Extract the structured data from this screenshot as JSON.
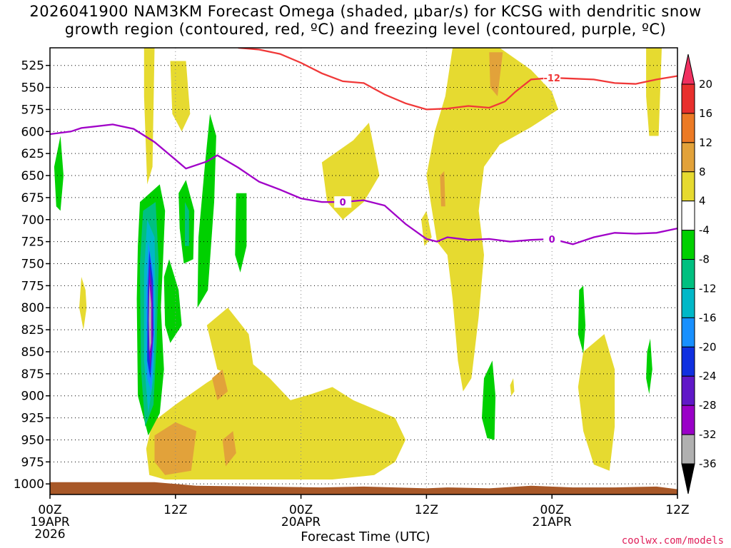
{
  "title_line1": "2026041900 NAM3KM Forecast Omega (shaded, μbar/s) for KCSG with dendritic snow",
  "title_line2": "growth region (contoured, red, ºC) and freezing level (contoured, purple, ºC)",
  "credit": "coolwx.com/models",
  "chart_data": {
    "type": "heatmap",
    "title": "2026041900 NAM3KM Forecast Omega (shaded, μbar/s) for KCSG with dendritic snow growth region (contoured, red, ºC) and freezing level (contoured, purple, ºC)",
    "xlabel": "Forecast Time (UTC)",
    "ylabel": "",
    "x_range_hours": [
      0,
      60
    ],
    "y_range_mb": [
      505,
      1012
    ],
    "y_ticks": [
      525,
      550,
      575,
      600,
      625,
      650,
      675,
      700,
      725,
      750,
      775,
      800,
      825,
      850,
      875,
      900,
      925,
      950,
      975,
      1000
    ],
    "x_ticks": [
      {
        "hour": 0,
        "label": "00Z",
        "sub1": "19APR",
        "sub2": "2026"
      },
      {
        "hour": 12,
        "label": "12Z",
        "sub1": "",
        "sub2": ""
      },
      {
        "hour": 24,
        "label": "00Z",
        "sub1": "20APR",
        "sub2": ""
      },
      {
        "hour": 36,
        "label": "12Z",
        "sub1": "",
        "sub2": ""
      },
      {
        "hour": 48,
        "label": "00Z",
        "sub1": "21APR",
        "sub2": ""
      },
      {
        "hour": 60,
        "label": "12Z",
        "sub1": "",
        "sub2": ""
      }
    ],
    "grid": true,
    "colorbar": {
      "levels": [
        20,
        16,
        12,
        8,
        4,
        -4,
        -8,
        -12,
        -16,
        -20,
        -24,
        -28,
        -32,
        -36
      ],
      "colors": [
        "#f03060",
        "#e8302d",
        "#ec7a25",
        "#e2a23a",
        "#e6da30",
        "#ffffff",
        "#00d000",
        "#00c080",
        "#00b8c8",
        "#1890ff",
        "#1030e0",
        "#6018c8",
        "#9a00c8",
        "#b0b0b0",
        "#000000"
      ]
    },
    "omega_regions": [
      {
        "value": 6,
        "points": [
          [
            9.0,
            505
          ],
          [
            10.0,
            505
          ],
          [
            9.8,
            640
          ],
          [
            9.3,
            660
          ],
          [
            9.0,
            560
          ]
        ]
      },
      {
        "value": 6,
        "points": [
          [
            11.5,
            520
          ],
          [
            13.0,
            520
          ],
          [
            13.4,
            580
          ],
          [
            12.6,
            600
          ],
          [
            11.7,
            580
          ]
        ]
      },
      {
        "value": 6,
        "points": [
          [
            3.0,
            765
          ],
          [
            3.4,
            780
          ],
          [
            3.5,
            800
          ],
          [
            3.2,
            825
          ],
          [
            2.8,
            800
          ]
        ]
      },
      {
        "value": 6,
        "points": [
          [
            9.8,
            930
          ],
          [
            12,
            910
          ],
          [
            15,
            885
          ],
          [
            17,
            870
          ],
          [
            19,
            860
          ],
          [
            21,
            880
          ],
          [
            23,
            905
          ],
          [
            25,
            898
          ],
          [
            27,
            890
          ],
          [
            29,
            905
          ],
          [
            31,
            915
          ],
          [
            33,
            925
          ],
          [
            34,
            950
          ],
          [
            33,
            975
          ],
          [
            31,
            990
          ],
          [
            27,
            995
          ],
          [
            23,
            995
          ],
          [
            19,
            995
          ],
          [
            15,
            995
          ],
          [
            11,
            995
          ],
          [
            9.5,
            990
          ],
          [
            9.2,
            960
          ]
        ]
      },
      {
        "value": 6,
        "points": [
          [
            15,
            820
          ],
          [
            17,
            800
          ],
          [
            19,
            830
          ],
          [
            19.5,
            870
          ],
          [
            18,
            880
          ],
          [
            16,
            870
          ]
        ]
      },
      {
        "value": 6,
        "points": [
          [
            26,
            635
          ],
          [
            29,
            610
          ],
          [
            30.5,
            590
          ],
          [
            31.5,
            650
          ],
          [
            30,
            680
          ],
          [
            28,
            700
          ],
          [
            26.5,
            680
          ]
        ]
      },
      {
        "value": 6,
        "points": [
          [
            35.5,
            700
          ],
          [
            36,
            690
          ],
          [
            36.5,
            720
          ],
          [
            35.8,
            730
          ]
        ]
      },
      {
        "value": 6,
        "points": [
          [
            38.5,
            505
          ],
          [
            43,
            505
          ],
          [
            46,
            530
          ],
          [
            48,
            555
          ],
          [
            48.6,
            575
          ],
          [
            46,
            595
          ],
          [
            43,
            615
          ],
          [
            41.5,
            640
          ],
          [
            41,
            690
          ],
          [
            41.5,
            740
          ],
          [
            41,
            810
          ],
          [
            40.3,
            880
          ],
          [
            39.5,
            895
          ],
          [
            39,
            860
          ],
          [
            38.5,
            790
          ],
          [
            38,
            740
          ],
          [
            37,
            725
          ],
          [
            36,
            650
          ],
          [
            36.8,
            600
          ],
          [
            37.8,
            560
          ]
        ]
      },
      {
        "value": 6,
        "points": [
          [
            51,
            850
          ],
          [
            53,
            830
          ],
          [
            54,
            870
          ],
          [
            54,
            935
          ],
          [
            53.5,
            985
          ],
          [
            52,
            978
          ],
          [
            51,
            940
          ],
          [
            50.5,
            890
          ]
        ]
      },
      {
        "value": 6,
        "points": [
          [
            57,
            505
          ],
          [
            58.5,
            505
          ],
          [
            58.2,
            605
          ],
          [
            57.3,
            605
          ],
          [
            57,
            560
          ]
        ]
      },
      {
        "value": 6,
        "points": [
          [
            44,
            888
          ],
          [
            44.3,
            880
          ],
          [
            44.4,
            895
          ],
          [
            44.1,
            900
          ]
        ]
      },
      {
        "value": 10,
        "points": [
          [
            10,
            945
          ],
          [
            12,
            930
          ],
          [
            14,
            940
          ],
          [
            13.5,
            985
          ],
          [
            11,
            990
          ],
          [
            10,
            975
          ]
        ]
      },
      {
        "value": 10,
        "points": [
          [
            15.5,
            880
          ],
          [
            16.5,
            870
          ],
          [
            17,
            895
          ],
          [
            16,
            905
          ]
        ]
      },
      {
        "value": 10,
        "points": [
          [
            16.5,
            950
          ],
          [
            17.5,
            940
          ],
          [
            17.8,
            965
          ],
          [
            16.8,
            980
          ]
        ]
      },
      {
        "value": 10,
        "points": [
          [
            42,
            510
          ],
          [
            43.3,
            510
          ],
          [
            42.8,
            560
          ],
          [
            42.1,
            550
          ]
        ]
      },
      {
        "value": 10,
        "points": [
          [
            37.3,
            650
          ],
          [
            37.7,
            645
          ],
          [
            37.8,
            685
          ],
          [
            37.4,
            685
          ]
        ]
      },
      {
        "value": 10,
        "points": [
          [
            12.8,
            945
          ],
          [
            13.1,
            940
          ],
          [
            13.2,
            955
          ],
          [
            12.9,
            955
          ]
        ]
      },
      {
        "value": -6,
        "points": [
          [
            0.4,
            640
          ],
          [
            1.0,
            605
          ],
          [
            1.3,
            650
          ],
          [
            1.0,
            690
          ],
          [
            0.6,
            685
          ]
        ]
      },
      {
        "value": -6,
        "points": [
          [
            8.6,
            680
          ],
          [
            10.5,
            660
          ],
          [
            11,
            690
          ],
          [
            10.8,
            750
          ],
          [
            10.6,
            800
          ],
          [
            10.9,
            870
          ],
          [
            10.5,
            920
          ],
          [
            9.4,
            945
          ],
          [
            8.4,
            900
          ],
          [
            8.3,
            790
          ],
          [
            8.4,
            730
          ]
        ]
      },
      {
        "value": -6,
        "points": [
          [
            10.9,
            765
          ],
          [
            11.4,
            745
          ],
          [
            12.3,
            780
          ],
          [
            12.6,
            820
          ],
          [
            11.5,
            840
          ],
          [
            11.0,
            820
          ]
        ]
      },
      {
        "value": -6,
        "points": [
          [
            12.3,
            670
          ],
          [
            13.0,
            655
          ],
          [
            13.8,
            690
          ],
          [
            13.7,
            745
          ],
          [
            12.8,
            750
          ],
          [
            12.4,
            710
          ]
        ]
      },
      {
        "value": -6,
        "points": [
          [
            14.8,
            640
          ],
          [
            15.3,
            580
          ],
          [
            15.9,
            605
          ],
          [
            15.7,
            680
          ],
          [
            15.1,
            780
          ],
          [
            14.1,
            800
          ],
          [
            14.2,
            720
          ]
        ]
      },
      {
        "value": -6,
        "points": [
          [
            17.8,
            670
          ],
          [
            18.8,
            670
          ],
          [
            18.8,
            730
          ],
          [
            18.2,
            760
          ],
          [
            17.7,
            740
          ]
        ]
      },
      {
        "value": -6,
        "points": [
          [
            41.5,
            880
          ],
          [
            42.3,
            860
          ],
          [
            42.6,
            900
          ],
          [
            42.5,
            950
          ],
          [
            41.8,
            948
          ],
          [
            41.3,
            925
          ]
        ]
      },
      {
        "value": -6,
        "points": [
          [
            50.6,
            780
          ],
          [
            51,
            775
          ],
          [
            51.2,
            820
          ],
          [
            51,
            852
          ],
          [
            50.5,
            830
          ]
        ]
      },
      {
        "value": -6,
        "points": [
          [
            57.1,
            850
          ],
          [
            57.4,
            835
          ],
          [
            57.6,
            870
          ],
          [
            57.3,
            898
          ],
          [
            57.0,
            880
          ]
        ]
      },
      {
        "value": -10,
        "points": [
          [
            8.9,
            690
          ],
          [
            10.1,
            680
          ],
          [
            10.4,
            750
          ],
          [
            10.2,
            840
          ],
          [
            9.9,
            910
          ],
          [
            9.1,
            935
          ],
          [
            8.7,
            870
          ],
          [
            8.6,
            750
          ]
        ]
      },
      {
        "value": -10,
        "points": [
          [
            12.9,
            680
          ],
          [
            13.3,
            690
          ],
          [
            13.3,
            730
          ],
          [
            12.9,
            730
          ]
        ]
      },
      {
        "value": -14,
        "points": [
          [
            9.3,
            700
          ],
          [
            10.0,
            720
          ],
          [
            10.1,
            800
          ],
          [
            9.9,
            880
          ],
          [
            9.4,
            920
          ],
          [
            9.0,
            860
          ],
          [
            9.0,
            760
          ]
        ]
      },
      {
        "value": -18,
        "points": [
          [
            9.4,
            725
          ],
          [
            9.9,
            760
          ],
          [
            10.0,
            830
          ],
          [
            9.7,
            895
          ],
          [
            9.3,
            880
          ],
          [
            9.2,
            790
          ]
        ]
      },
      {
        "value": -22,
        "points": [
          [
            9.5,
            735
          ],
          [
            9.85,
            770
          ],
          [
            9.9,
            830
          ],
          [
            9.6,
            880
          ],
          [
            9.3,
            860
          ],
          [
            9.35,
            780
          ]
        ]
      },
      {
        "value": -26,
        "points": [
          [
            9.5,
            750
          ],
          [
            9.8,
            780
          ],
          [
            9.85,
            835
          ],
          [
            9.6,
            870
          ],
          [
            9.4,
            845
          ],
          [
            9.4,
            790
          ]
        ]
      },
      {
        "value": -30,
        "points": [
          [
            9.5,
            762
          ],
          [
            9.75,
            790
          ],
          [
            9.75,
            840
          ],
          [
            9.55,
            858
          ],
          [
            9.45,
            820
          ]
        ]
      },
      {
        "value": -34,
        "points": [
          [
            9.5,
            772
          ],
          [
            9.68,
            795
          ],
          [
            9.68,
            840
          ],
          [
            9.52,
            850
          ],
          [
            9.45,
            815
          ]
        ]
      }
    ],
    "freezing_level_0C": {
      "color": "#a000c8",
      "label": "0",
      "x": [
        0,
        2,
        3,
        6,
        8,
        10,
        12,
        13,
        15,
        16,
        18,
        20,
        22,
        24,
        26,
        28,
        30,
        32,
        34,
        36,
        37,
        38,
        40,
        42,
        44,
        46,
        48,
        50,
        52,
        54,
        56,
        58,
        60
      ],
      "y": [
        603,
        600,
        596,
        592,
        597,
        612,
        632,
        642,
        634,
        627,
        641,
        657,
        666,
        676,
        680,
        680,
        678,
        684,
        705,
        722,
        725,
        720,
        723,
        722,
        725,
        723,
        722,
        728,
        720,
        715,
        716,
        715,
        710
      ]
    },
    "dgz_neg12C": {
      "color": "#f03838",
      "label": "-12",
      "x": [
        18,
        20,
        22,
        24,
        26,
        28,
        30,
        32,
        34,
        36,
        38,
        40,
        42,
        43.5,
        44.5,
        46,
        48,
        50,
        52,
        54,
        56,
        58,
        60
      ],
      "y": [
        505,
        507,
        512,
        522,
        534,
        543,
        545,
        558,
        568,
        575,
        574,
        571,
        573,
        566,
        555,
        541,
        539,
        540,
        541,
        545,
        546,
        541,
        537
      ]
    },
    "terrain_pressure_mb": {
      "color": "#a85828",
      "x": [
        0,
        6,
        10,
        14,
        20,
        26,
        30,
        36,
        38,
        42,
        46,
        50,
        54,
        58,
        60
      ],
      "y": [
        998,
        998,
        998,
        1002,
        1003,
        1004,
        1003,
        1005,
        1004,
        1005,
        1002,
        1004,
        1004,
        1003,
        1006
      ]
    }
  }
}
